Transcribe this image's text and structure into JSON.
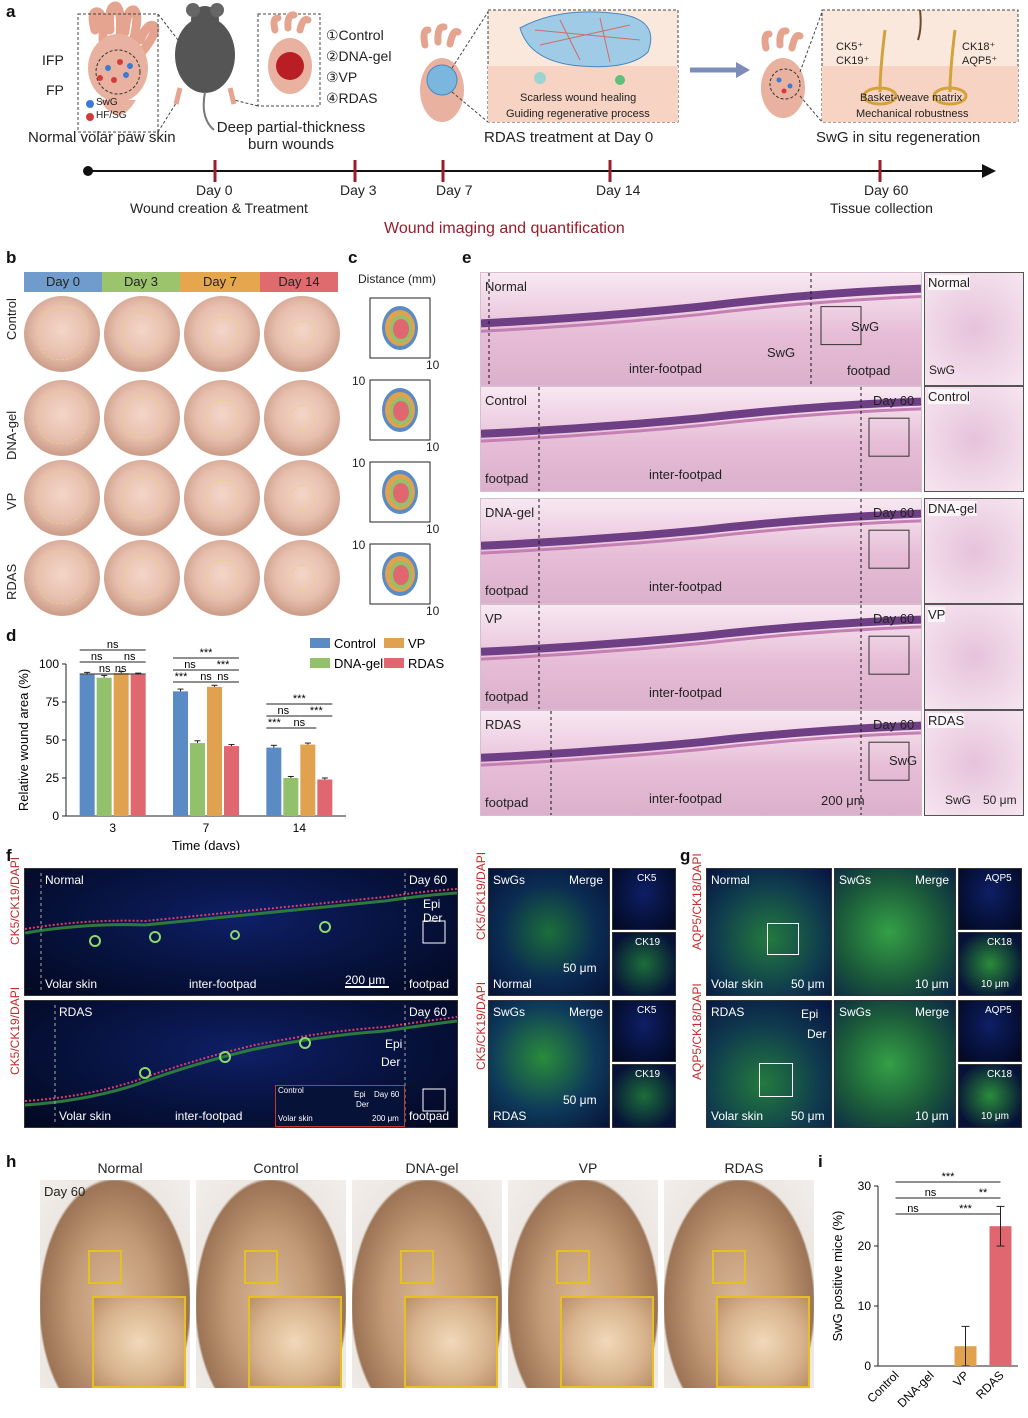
{
  "panels": {
    "a": "a",
    "b": "b",
    "c": "c",
    "d": "d",
    "e": "e",
    "f": "f",
    "g": "g",
    "h": "h",
    "i": "i"
  },
  "panel_a": {
    "ifp": "IFP",
    "fp": "FP",
    "swg": "SwG",
    "hfsg": "HF/SG",
    "normal_caption": "Normal volar paw skin",
    "burn_caption": "Deep partial-thickness burn wounds",
    "groups": [
      "①Control",
      "②DNA-gel",
      "③VP",
      "④RDAS"
    ],
    "scarless": "Scarless wound healing",
    "guiding": "Guiding regenerative process",
    "rdas_caption": "RDAS treatment at Day 0",
    "ck5ck19": "CK5⁺ CK19⁺",
    "ck18aqp5": "CK18⁺ AQP5⁺",
    "basket": "Basket-weave matrix",
    "mech": "Mechanical robustness",
    "swg_caption": "SwG in situ regeneration",
    "timeline": [
      {
        "day": "Day 0",
        "sub": "Wound creation & Treatment"
      },
      {
        "day": "Day 3",
        "sub": ""
      },
      {
        "day": "Day 7",
        "sub": ""
      },
      {
        "day": "Day 14",
        "sub": ""
      },
      {
        "day": "Day 60",
        "sub": "Tissue collection"
      }
    ],
    "imaging": "Wound imaging and quantification",
    "colors": {
      "timeline_tick": "#9b1c2b",
      "imaging_text": "#9b1c2b",
      "arrow": "#7b8db8"
    }
  },
  "panel_b": {
    "days": [
      "Day 0",
      "Day 3",
      "Day 7",
      "Day 14"
    ],
    "day_colors": [
      "#6f9ccc",
      "#9cc46c",
      "#e6a64e",
      "#df6b6e"
    ],
    "groups": [
      "Control",
      "DNA-gel",
      "VP",
      "RDAS"
    ]
  },
  "panel_c": {
    "title": "Distance (mm)",
    "tick_max": "10",
    "tick_y": "10"
  },
  "panel_e": {
    "rows": [
      {
        "label": "Normal",
        "day": "",
        "left": "",
        "mid": "inter-footpad",
        "right": "footpad",
        "zoom": "Normal",
        "swg": "SwG"
      },
      {
        "label": "Control",
        "day": "Day 60",
        "left": "footpad",
        "mid": "inter-footpad",
        "right": "",
        "zoom": "Control",
        "swg": ""
      },
      {
        "label": "DNA-gel",
        "day": "Day 60",
        "left": "footpad",
        "mid": "inter-footpad",
        "right": "",
        "zoom": "DNA-gel",
        "swg": ""
      },
      {
        "label": "VP",
        "day": "Day 60",
        "left": "footpad",
        "mid": "inter-footpad",
        "right": "",
        "zoom": "VP",
        "swg": ""
      },
      {
        "label": "RDAS",
        "day": "Day 60",
        "left": "footpad",
        "mid": "inter-footpad",
        "right": "",
        "zoom": "RDAS",
        "swg": "SwG"
      }
    ],
    "scale_main": "200 μm",
    "scale_zoom": "50 μm",
    "swg_zoom": "SwG"
  },
  "panel_f": {
    "ylabel": "CK5/CK19/DAPI",
    "top": {
      "label": "Normal",
      "day": "Day 60",
      "epi": "Epi",
      "der": "Der",
      "volar": "Volar skin",
      "inter": "inter-footpad",
      "foot": "footpad",
      "scale": "200 μm"
    },
    "bottom": {
      "label": "RDAS",
      "day": "Day 60",
      "epi": "Epi",
      "der": "Der",
      "volar": "Volar skin",
      "inter": "inter-footpad",
      "foot": "footpad",
      "inset": "Control",
      "inset_day": "Day 60",
      "inset_volar": "Volar skin",
      "inset_scale": "200 μm",
      "inset_epi": "Epi",
      "inset_der": "Der"
    },
    "zoom": {
      "swgs": "SwGs",
      "merge": "Merge",
      "ck5": "CK5",
      "ck19": "CK19",
      "normal": "Normal",
      "rdas": "RDAS",
      "scale": "50 μm"
    }
  },
  "panel_g": {
    "ylabel": "AQP5/CK18/DAPI",
    "top": {
      "label": "Normal",
      "volar": "Volar skin",
      "scale": "50 μm"
    },
    "bottom": {
      "label": "RDAS",
      "epi": "Epi",
      "der": "Der",
      "volar": "Volar skin",
      "scale": "50 μm"
    },
    "zoom": {
      "swgs": "SwGs",
      "merge": "Merge",
      "aqp5": "AQP5",
      "ck18": "CK18",
      "scale": "10 μm"
    }
  },
  "panel_h": {
    "groups": [
      "Normal",
      "Control",
      "DNA-gel",
      "VP",
      "RDAS"
    ],
    "day": "Day 60"
  },
  "chart_data": [
    {
      "type": "bar",
      "panel": "d",
      "title": "",
      "xlabel": "Time (days)",
      "ylabel": "Relative wound area (%)",
      "categories": [
        "3",
        "7",
        "14"
      ],
      "ylim": [
        0,
        100
      ],
      "yticks": [
        0,
        25,
        50,
        75,
        100
      ],
      "series": [
        {
          "name": "Control",
          "color": "#5b8bc4",
          "values": [
            93,
            82,
            45
          ],
          "errors": [
            1.5,
            1.5,
            1.5
          ]
        },
        {
          "name": "DNA-gel",
          "color": "#93c06a",
          "values": [
            91,
            48,
            25
          ],
          "errors": [
            1.5,
            1.5,
            1
          ]
        },
        {
          "name": "VP",
          "color": "#e0a24f",
          "values": [
            94,
            85,
            47
          ],
          "errors": [
            1,
            1,
            1
          ]
        },
        {
          "name": "RDAS",
          "color": "#e0676f",
          "values": [
            93,
            46,
            24
          ],
          "errors": [
            1,
            1,
            1
          ]
        }
      ],
      "significance": {
        "3": [
          "ns",
          "ns",
          "ns",
          "ns",
          "ns"
        ],
        "7": [
          "***",
          "ns",
          "***",
          "***",
          "ns",
          "ns"
        ],
        "14": [
          "***",
          "ns",
          "***",
          "***",
          "ns"
        ]
      },
      "legend_position": "top-right"
    },
    {
      "type": "bar",
      "panel": "i",
      "title": "",
      "xlabel": "",
      "ylabel": "SwG positive mice (%)",
      "categories": [
        "Control",
        "DNA-gel",
        "VP",
        "RDAS"
      ],
      "ylim": [
        0,
        30
      ],
      "yticks": [
        0,
        10,
        20,
        30
      ],
      "values": [
        0,
        0,
        3.3,
        23.3
      ],
      "errors": [
        0,
        0,
        3.3,
        3.3
      ],
      "colors": [
        "#5b8bc4",
        "#93c06a",
        "#e0a24f",
        "#e0676f"
      ],
      "significance": [
        {
          "text": "***"
        },
        {
          "text": "ns"
        },
        {
          "text": "**"
        },
        {
          "text": "ns"
        },
        {
          "text": "***"
        }
      ]
    }
  ]
}
